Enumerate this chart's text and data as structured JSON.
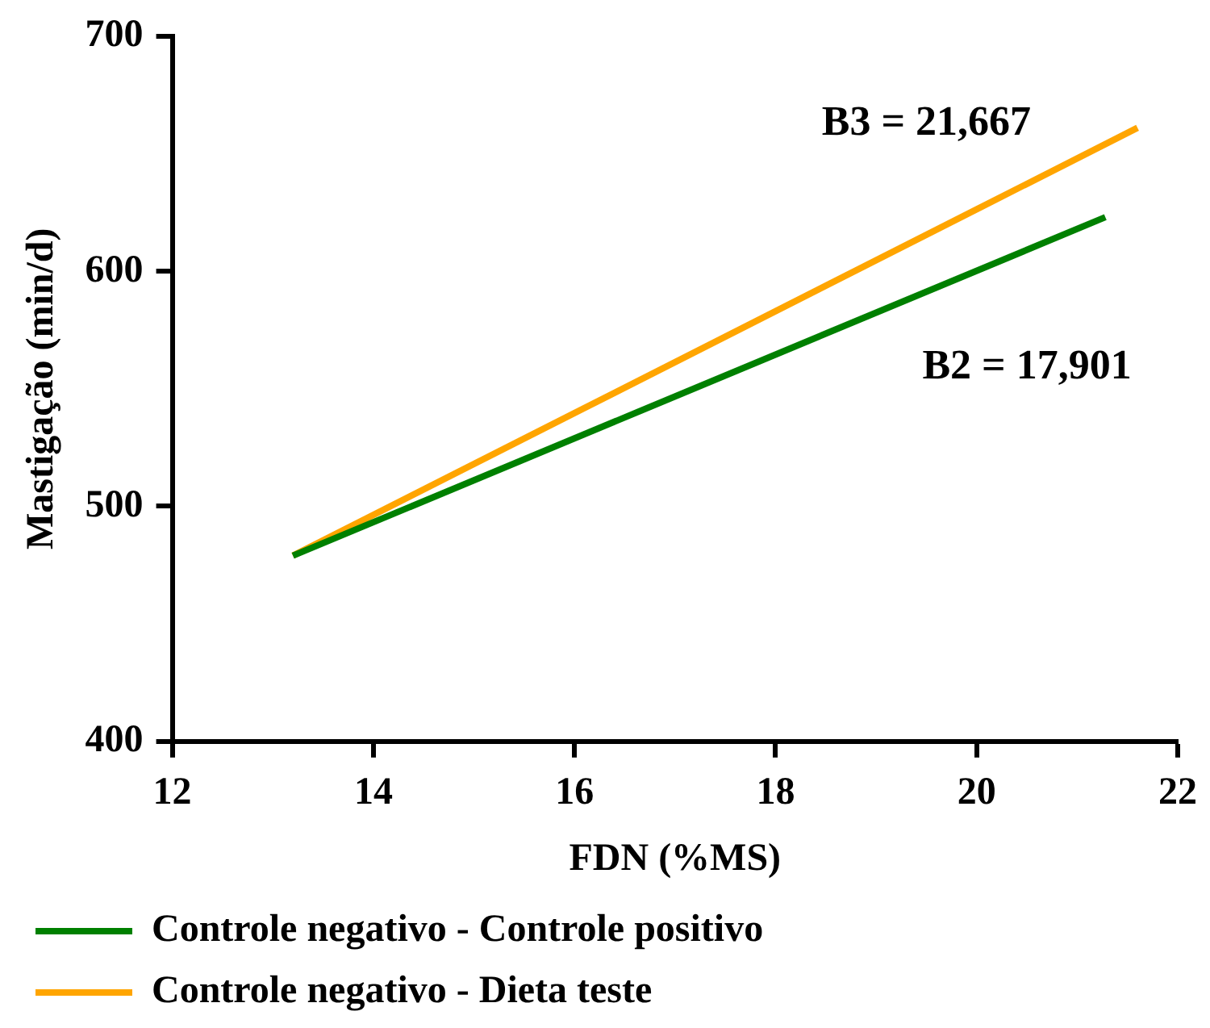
{
  "chart_data": {
    "type": "line",
    "xlabel": "FDN (%MS)",
    "ylabel": "Mastigação (min/d)",
    "xlim": [
      12,
      22
    ],
    "xticks": [
      12,
      14,
      16,
      18,
      20,
      22
    ],
    "ylim": [
      400,
      700
    ],
    "yticks": [
      400,
      500,
      600,
      700
    ],
    "grid": false,
    "legend": "bottom",
    "marker": "none",
    "line_style": "solid",
    "series": [
      {
        "name": "Controle negativo - Controle positivo",
        "color": "#008000",
        "x": [
          13.2,
          21.28
        ],
        "values": [
          479,
          623
        ]
      },
      {
        "name": "Controle negativo - Dieta teste",
        "color": "#ffa500",
        "x": [
          13.2,
          21.6
        ],
        "values": [
          479,
          661
        ]
      }
    ],
    "annotations": [
      "B3 = 21,667",
      "B2 = 17,901"
    ]
  }
}
